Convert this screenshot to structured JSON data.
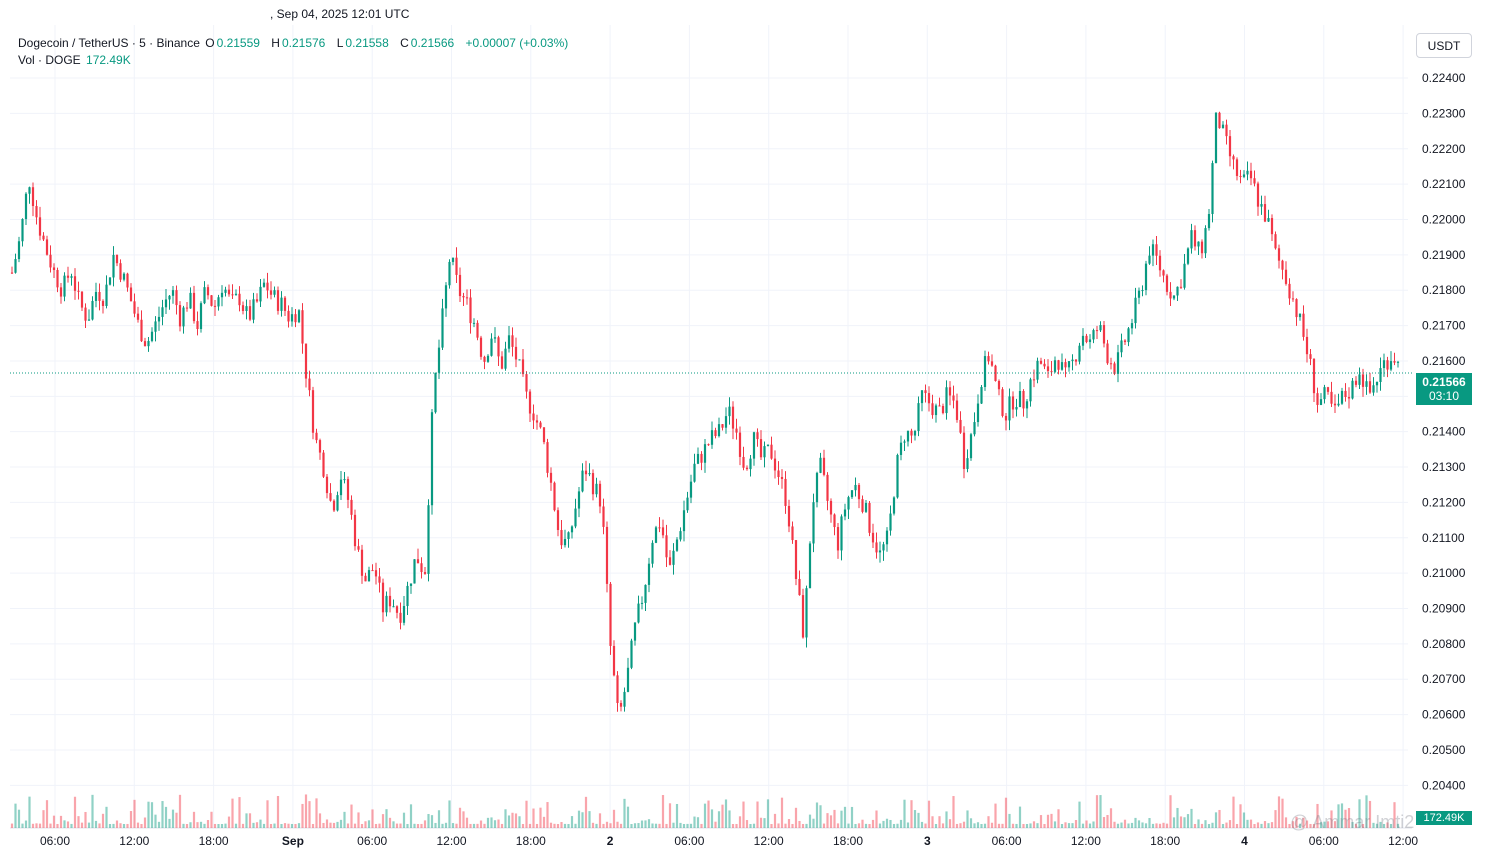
{
  "header": {
    "datetime": ", Sep 04, 2025 12:01 UTC"
  },
  "legend": {
    "symbol": "Dogecoin / TetherUS · 5 · Binance",
    "o_label": "O",
    "o": "0.21559",
    "h_label": "H",
    "h": "0.21576",
    "l_label": "L",
    "l": "0.21558",
    "c_label": "C",
    "c": "0.21566",
    "change": "+0.00007 (+0.03%)",
    "vol_label": "Vol · DOGE",
    "vol": "172.49K"
  },
  "currency_button": "USDT",
  "last_price": {
    "value": "0.21566",
    "countdown": "03:10"
  },
  "volume_tag": "172.49K",
  "watermark": "@ Ammar Imti2",
  "colors": {
    "up": "#089981",
    "down": "#f23645",
    "grid": "#f0f3fa",
    "text": "#131722"
  },
  "chart_data": {
    "type": "candlestick",
    "grid": true,
    "ylim": [
      0.2035,
      0.2255
    ],
    "y_ticks": [
      "0.22400",
      "0.22300",
      "0.22200",
      "0.22100",
      "0.22000",
      "0.21900",
      "0.21800",
      "0.21700",
      "0.21600",
      "0.21500",
      "0.21400",
      "0.21300",
      "0.21200",
      "0.21100",
      "0.21000",
      "0.20900",
      "0.20800",
      "0.20700",
      "0.20600",
      "0.20500",
      "0.20400"
    ],
    "x_ticks": [
      "06:00",
      "12:00",
      "18:00",
      "Sep",
      "06:00",
      "12:00",
      "18:00",
      "2",
      "06:00",
      "12:00",
      "18:00",
      "3",
      "06:00",
      "12:00",
      "18:00",
      "4",
      "06:00",
      "12:00"
    ],
    "last": 0.21566,
    "path": [
      [
        0,
        0.2185
      ],
      [
        1,
        0.2195
      ],
      [
        2,
        0.2212
      ],
      [
        3,
        0.22
      ],
      [
        4,
        0.2192
      ],
      [
        5,
        0.2185
      ],
      [
        6,
        0.218
      ],
      [
        7,
        0.2186
      ],
      [
        8,
        0.2176
      ],
      [
        9,
        0.2172
      ],
      [
        10,
        0.218
      ],
      [
        11,
        0.2178
      ],
      [
        12,
        0.219
      ],
      [
        13,
        0.2185
      ],
      [
        14,
        0.2178
      ],
      [
        15,
        0.217
      ],
      [
        16,
        0.2165
      ],
      [
        17,
        0.217
      ],
      [
        18,
        0.2176
      ],
      [
        19,
        0.218
      ],
      [
        20,
        0.2172
      ],
      [
        21,
        0.2178
      ],
      [
        22,
        0.217
      ],
      [
        23,
        0.218
      ],
      [
        24,
        0.2175
      ],
      [
        25,
        0.2182
      ],
      [
        26,
        0.2176
      ],
      [
        27,
        0.2178
      ],
      [
        28,
        0.2172
      ],
      [
        29,
        0.2176
      ],
      [
        30,
        0.2182
      ],
      [
        31,
        0.2178
      ],
      [
        32,
        0.2176
      ],
      [
        33,
        0.2172
      ],
      [
        34,
        0.2175
      ],
      [
        35,
        0.2155
      ],
      [
        36,
        0.2138
      ],
      [
        37,
        0.213
      ],
      [
        38,
        0.2118
      ],
      [
        39,
        0.2128
      ],
      [
        40,
        0.212
      ],
      [
        41,
        0.2106
      ],
      [
        42,
        0.2098
      ],
      [
        43,
        0.2102
      ],
      [
        44,
        0.209
      ],
      [
        45,
        0.2093
      ],
      [
        46,
        0.2088
      ],
      [
        47,
        0.2096
      ],
      [
        48,
        0.2105
      ],
      [
        49,
        0.21
      ],
      [
        50,
        0.215
      ],
      [
        51,
        0.217
      ],
      [
        52,
        0.219
      ],
      [
        53,
        0.218
      ],
      [
        54,
        0.2176
      ],
      [
        55,
        0.217
      ],
      [
        56,
        0.216
      ],
      [
        57,
        0.2168
      ],
      [
        58,
        0.2158
      ],
      [
        59,
        0.2166
      ],
      [
        60,
        0.216
      ],
      [
        61,
        0.215
      ],
      [
        62,
        0.2145
      ],
      [
        63,
        0.2138
      ],
      [
        64,
        0.2125
      ],
      [
        65,
        0.211
      ],
      [
        66,
        0.2108
      ],
      [
        67,
        0.212
      ],
      [
        68,
        0.213
      ],
      [
        69,
        0.2125
      ],
      [
        70,
        0.212
      ],
      [
        71,
        0.208
      ],
      [
        72,
        0.2058
      ],
      [
        73,
        0.207
      ],
      [
        74,
        0.2085
      ],
      [
        75,
        0.2095
      ],
      [
        76,
        0.211
      ],
      [
        77,
        0.2115
      ],
      [
        78,
        0.21
      ],
      [
        79,
        0.211
      ],
      [
        80,
        0.212
      ],
      [
        81,
        0.213
      ],
      [
        82,
        0.2134
      ],
      [
        83,
        0.2138
      ],
      [
        84,
        0.214
      ],
      [
        85,
        0.2146
      ],
      [
        86,
        0.214
      ],
      [
        87,
        0.213
      ],
      [
        88,
        0.2138
      ],
      [
        89,
        0.2132
      ],
      [
        90,
        0.2135
      ],
      [
        91,
        0.2128
      ],
      [
        92,
        0.212
      ],
      [
        93,
        0.21
      ],
      [
        94,
        0.2082
      ],
      [
        95,
        0.212
      ],
      [
        96,
        0.213
      ],
      [
        97,
        0.2118
      ],
      [
        98,
        0.2108
      ],
      [
        99,
        0.212
      ],
      [
        100,
        0.2125
      ],
      [
        101,
        0.212
      ],
      [
        102,
        0.2112
      ],
      [
        103,
        0.2105
      ],
      [
        104,
        0.211
      ],
      [
        105,
        0.213
      ],
      [
        106,
        0.214
      ],
      [
        107,
        0.2138
      ],
      [
        108,
        0.215
      ],
      [
        109,
        0.2148
      ],
      [
        110,
        0.2145
      ],
      [
        111,
        0.215
      ],
      [
        112,
        0.2148
      ],
      [
        113,
        0.2132
      ],
      [
        114,
        0.214
      ],
      [
        115,
        0.2155
      ],
      [
        116,
        0.2162
      ],
      [
        117,
        0.215
      ],
      [
        118,
        0.2145
      ],
      [
        119,
        0.215
      ],
      [
        120,
        0.2148
      ],
      [
        121,
        0.2155
      ],
      [
        122,
        0.216
      ],
      [
        123,
        0.2155
      ],
      [
        124,
        0.2162
      ],
      [
        125,
        0.2155
      ],
      [
        126,
        0.216
      ],
      [
        127,
        0.2168
      ],
      [
        128,
        0.2165
      ],
      [
        129,
        0.217
      ],
      [
        130,
        0.2162
      ],
      [
        131,
        0.2158
      ],
      [
        132,
        0.2165
      ],
      [
        133,
        0.2172
      ],
      [
        134,
        0.218
      ],
      [
        135,
        0.2192
      ],
      [
        136,
        0.2188
      ],
      [
        137,
        0.2182
      ],
      [
        138,
        0.2178
      ],
      [
        139,
        0.2185
      ],
      [
        140,
        0.2195
      ],
      [
        141,
        0.219
      ],
      [
        142,
        0.22
      ],
      [
        143,
        0.223
      ],
      [
        144,
        0.2222
      ],
      [
        145,
        0.2215
      ],
      [
        146,
        0.221
      ],
      [
        147,
        0.2212
      ],
      [
        148,
        0.2205
      ],
      [
        149,
        0.22
      ],
      [
        150,
        0.219
      ],
      [
        151,
        0.2185
      ],
      [
        152,
        0.2178
      ],
      [
        153,
        0.217
      ],
      [
        154,
        0.216
      ],
      [
        155,
        0.2148
      ],
      [
        156,
        0.215
      ],
      [
        157,
        0.2145
      ],
      [
        158,
        0.215
      ],
      [
        159,
        0.2152
      ],
      [
        160,
        0.2158
      ],
      [
        161,
        0.215
      ],
      [
        162,
        0.2155
      ],
      [
        163,
        0.216
      ],
      [
        164,
        0.2162
      ],
      [
        165,
        0.2156
      ]
    ]
  }
}
